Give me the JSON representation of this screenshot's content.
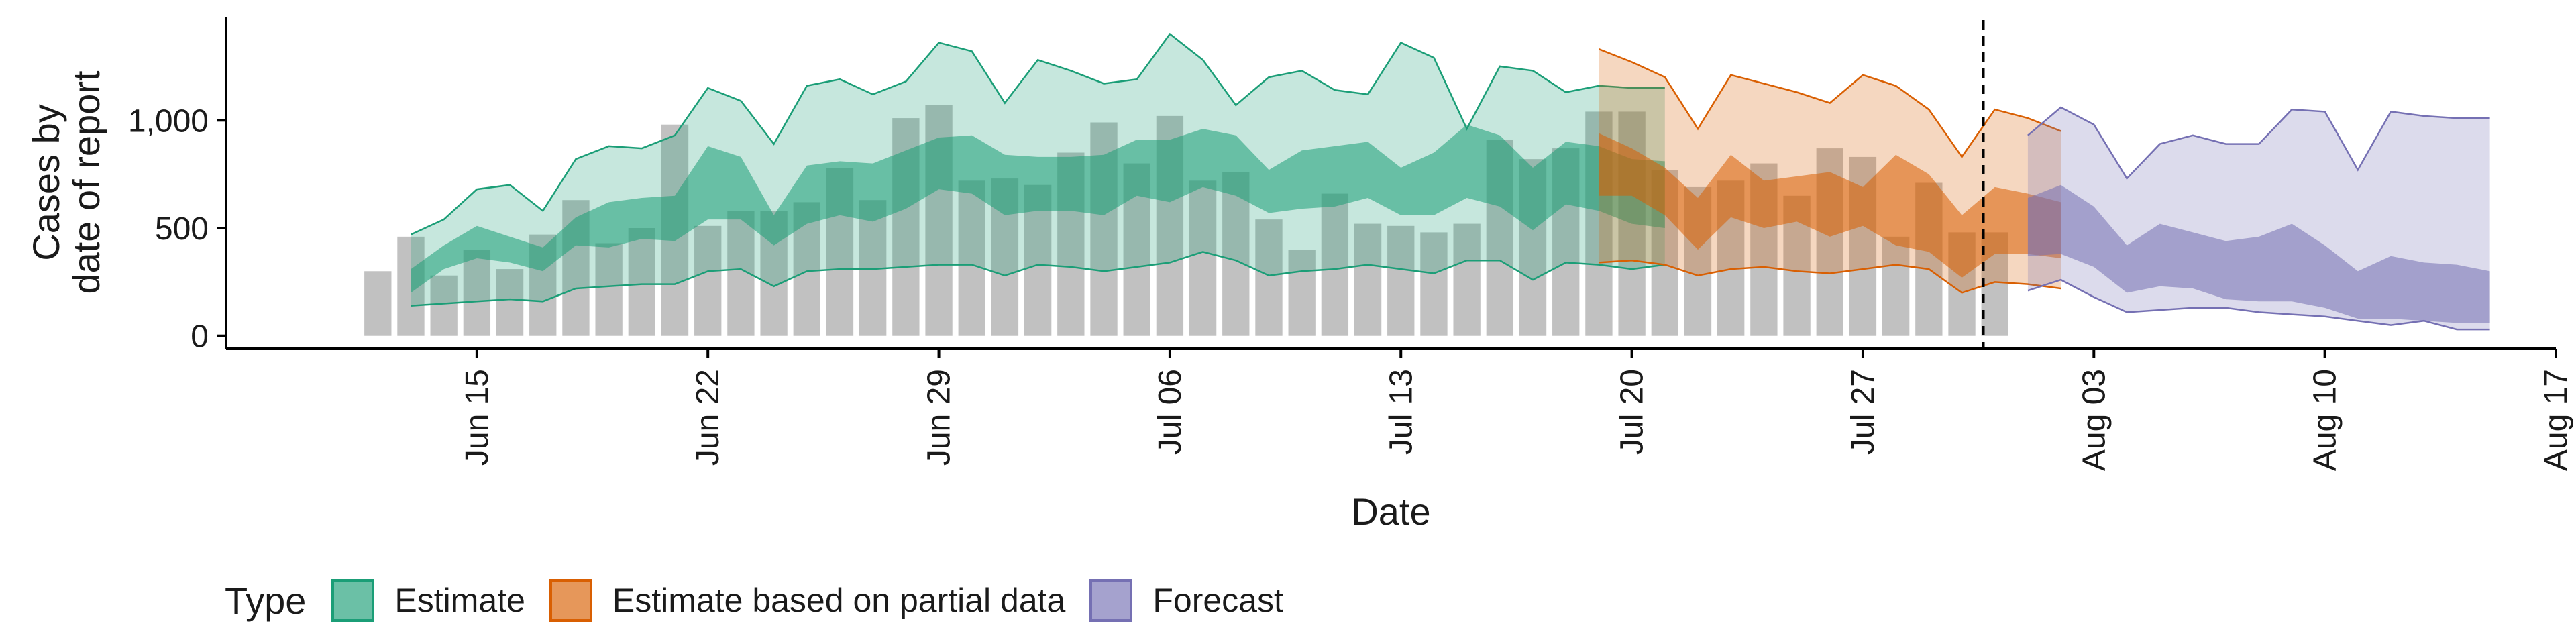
{
  "colors": {
    "estimate": "#1b9e77",
    "partial": "#d95f02",
    "forecast": "#7570b3",
    "bars": "#b3b3b3",
    "axis": "#000000"
  },
  "chart_data": {
    "type": "area",
    "xlabel": "Date",
    "ylabel_line1": "Cases by",
    "ylabel_line2": "date of report",
    "x_ticks": [
      "Jun 15",
      "Jun 22",
      "Jun 29",
      "Jul 06",
      "Jul 13",
      "Jul 20",
      "Jul 27",
      "Aug 03",
      "Aug 10",
      "Aug 17"
    ],
    "y_ticks": [
      0,
      500,
      1000
    ],
    "y_tick_labels": [
      "0",
      "500",
      "1,000"
    ],
    "ylim": [
      -60,
      1480
    ],
    "xlim_days_from_jun15": [
      -7.6,
      63
    ],
    "cutoff_date": "Jul 31",
    "grid": false,
    "legend": {
      "position": "bottom",
      "title": "Type",
      "entries": [
        {
          "key": "estimate",
          "label": "Estimate"
        },
        {
          "key": "partial",
          "label": "Estimate based on partial data"
        },
        {
          "key": "forecast",
          "label": "Forecast"
        }
      ]
    },
    "reported_cases": {
      "start_date": "Jun 12",
      "values": [
        300,
        460,
        280,
        400,
        310,
        470,
        630,
        430,
        500,
        980,
        510,
        580,
        580,
        620,
        780,
        630,
        1010,
        1070,
        720,
        730,
        700,
        850,
        990,
        800,
        1020,
        720,
        760,
        540,
        400,
        660,
        520,
        510,
        480,
        520,
        910,
        820,
        870,
        1040,
        1040,
        770,
        690,
        720,
        800,
        650,
        870,
        830,
        460,
        710,
        480,
        480
      ]
    },
    "series": [
      {
        "name": "Estimate",
        "key": "estimate",
        "start_date": "Jun 13",
        "lower90": [
          140,
          150,
          160,
          170,
          160,
          220,
          230,
          240,
          240,
          300,
          310,
          230,
          300,
          310,
          310,
          320,
          330,
          330,
          280,
          330,
          320,
          300,
          320,
          340,
          390,
          350,
          280,
          300,
          310,
          330,
          310,
          290,
          350,
          350,
          260,
          340,
          330,
          310,
          330
        ],
        "lower50": [
          200,
          310,
          360,
          340,
          300,
          420,
          410,
          450,
          440,
          540,
          540,
          420,
          520,
          560,
          530,
          590,
          680,
          660,
          560,
          580,
          580,
          560,
          650,
          620,
          690,
          650,
          570,
          590,
          600,
          640,
          560,
          560,
          640,
          600,
          490,
          610,
          580,
          520,
          500
        ],
        "upper50": [
          310,
          420,
          510,
          460,
          410,
          550,
          620,
          640,
          650,
          880,
          830,
          560,
          790,
          810,
          800,
          860,
          920,
          930,
          840,
          830,
          830,
          840,
          910,
          910,
          960,
          930,
          770,
          860,
          880,
          900,
          780,
          850,
          980,
          930,
          780,
          900,
          880,
          820,
          810
        ],
        "upper90": [
          470,
          540,
          680,
          700,
          580,
          820,
          880,
          870,
          930,
          1150,
          1090,
          890,
          1160,
          1190,
          1120,
          1180,
          1360,
          1320,
          1080,
          1280,
          1230,
          1170,
          1190,
          1400,
          1280,
          1070,
          1200,
          1230,
          1140,
          1120,
          1360,
          1290,
          960,
          1250,
          1230,
          1130,
          1160,
          1150,
          1150
        ]
      },
      {
        "name": "Estimate based on partial data",
        "key": "partial",
        "start_date": "Jul 19",
        "lower90": [
          340,
          350,
          330,
          280,
          310,
          320,
          300,
          290,
          310,
          330,
          310,
          200,
          250,
          240,
          220
        ],
        "lower50": [
          650,
          650,
          560,
          400,
          550,
          500,
          530,
          460,
          510,
          420,
          390,
          270,
          380,
          380,
          360
        ],
        "upper50": [
          940,
          870,
          780,
          640,
          840,
          720,
          740,
          760,
          690,
          840,
          750,
          560,
          690,
          660,
          620
        ],
        "upper90": [
          1330,
          1270,
          1200,
          960,
          1210,
          1170,
          1130,
          1080,
          1210,
          1160,
          1050,
          830,
          1050,
          1010,
          950
        ]
      },
      {
        "name": "Forecast",
        "key": "forecast",
        "start_date": "Aug 01",
        "lower90": [
          210,
          260,
          180,
          110,
          120,
          130,
          130,
          110,
          100,
          90,
          70,
          50,
          70,
          30,
          30
        ],
        "lower50": [
          370,
          380,
          320,
          200,
          230,
          220,
          170,
          160,
          160,
          130,
          80,
          80,
          70,
          60,
          60
        ],
        "upper50": [
          640,
          700,
          600,
          420,
          520,
          480,
          440,
          460,
          520,
          420,
          300,
          370,
          340,
          330,
          300
        ],
        "upper90": [
          930,
          1060,
          980,
          730,
          890,
          930,
          890,
          890,
          1050,
          1040,
          770,
          1040,
          1020,
          1010,
          1010
        ]
      }
    ]
  }
}
